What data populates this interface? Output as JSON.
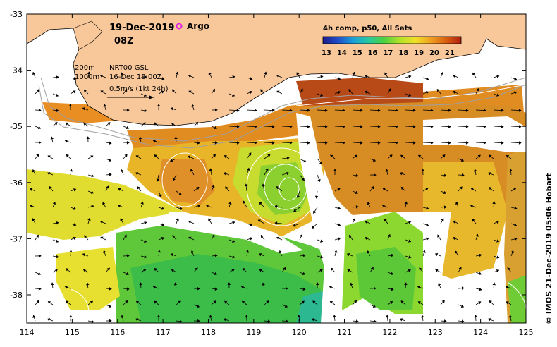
{
  "header": {
    "date": "19-Dec-2019",
    "hour": "08Z",
    "argo_label": "Argo"
  },
  "legend": {
    "depth_200": "200m",
    "depth_1000": "1000m",
    "product": "NRT00 GSL",
    "product_date": "16-Dec 18:00Z",
    "vector_scale": "0.5m/s (1kt 24h)"
  },
  "colorbar": {
    "title": "4h comp, p50, All Sats",
    "ticks": [
      "13",
      "14",
      "15",
      "16",
      "17",
      "18",
      "19",
      "20",
      "21"
    ],
    "colors": [
      "#1c1c8c",
      "#1f4ec8",
      "#1aa0d8",
      "#28c8a0",
      "#4cd040",
      "#b4e228",
      "#f0e028",
      "#f0a020",
      "#d86010",
      "#b02010"
    ]
  },
  "axes": {
    "x_ticks": [
      "114",
      "115",
      "116",
      "117",
      "118",
      "119",
      "120",
      "121",
      "122",
      "123",
      "124",
      "125"
    ],
    "y_ticks": [
      "-33",
      "-34",
      "-35",
      "-36",
      "-37",
      "-38"
    ]
  },
  "credit": "© IMOS 21-Dec-2019 05:06 Hobart",
  "colors": {
    "land": "#f9c89a",
    "argo": "#e020e0"
  }
}
